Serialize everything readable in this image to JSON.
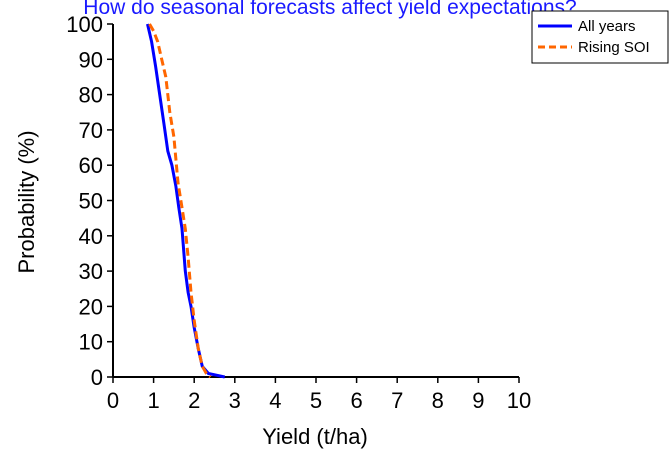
{
  "chart_data": {
    "type": "line",
    "title": "How do seasonal forecasts affect yield expectations?",
    "xlabel": "Yield (t/ha)",
    "ylabel": "Probability (%)",
    "xlim": [
      0,
      10
    ],
    "ylim": [
      0,
      100
    ],
    "xticks": [
      "0",
      "1",
      "2",
      "3",
      "4",
      "5",
      "6",
      "7",
      "8",
      "9",
      "10"
    ],
    "yticks": [
      "0",
      "10",
      "20",
      "30",
      "40",
      "50",
      "60",
      "70",
      "80",
      "90",
      "100"
    ],
    "grid": false,
    "legend_position": "top-right",
    "series": [
      {
        "name": "All years",
        "color": "#0000ff",
        "dash": "solid",
        "x": [
          0.85,
          0.95,
          1.05,
          1.15,
          1.25,
          1.35,
          1.45,
          1.55,
          1.62,
          1.7,
          1.78,
          1.85,
          1.92,
          2.0,
          2.1,
          2.2,
          2.35,
          2.55,
          2.75
        ],
        "y": [
          100,
          95,
          88,
          80,
          72,
          64,
          60,
          54,
          48,
          42,
          30,
          24,
          20,
          14,
          8,
          3,
          1,
          0.5,
          0
        ]
      },
      {
        "name": "Rising SOI",
        "color": "#ff6600",
        "dash": "dashed",
        "x": [
          0.9,
          1.0,
          1.1,
          1.2,
          1.3,
          1.4,
          1.5,
          1.6,
          1.7,
          1.78,
          1.85,
          1.92,
          2.0,
          2.1,
          2.2,
          2.3,
          2.4
        ],
        "y": [
          100,
          98,
          95,
          90,
          85,
          75,
          68,
          55,
          48,
          42,
          34,
          24,
          16,
          8,
          3,
          1,
          0
        ]
      }
    ]
  }
}
